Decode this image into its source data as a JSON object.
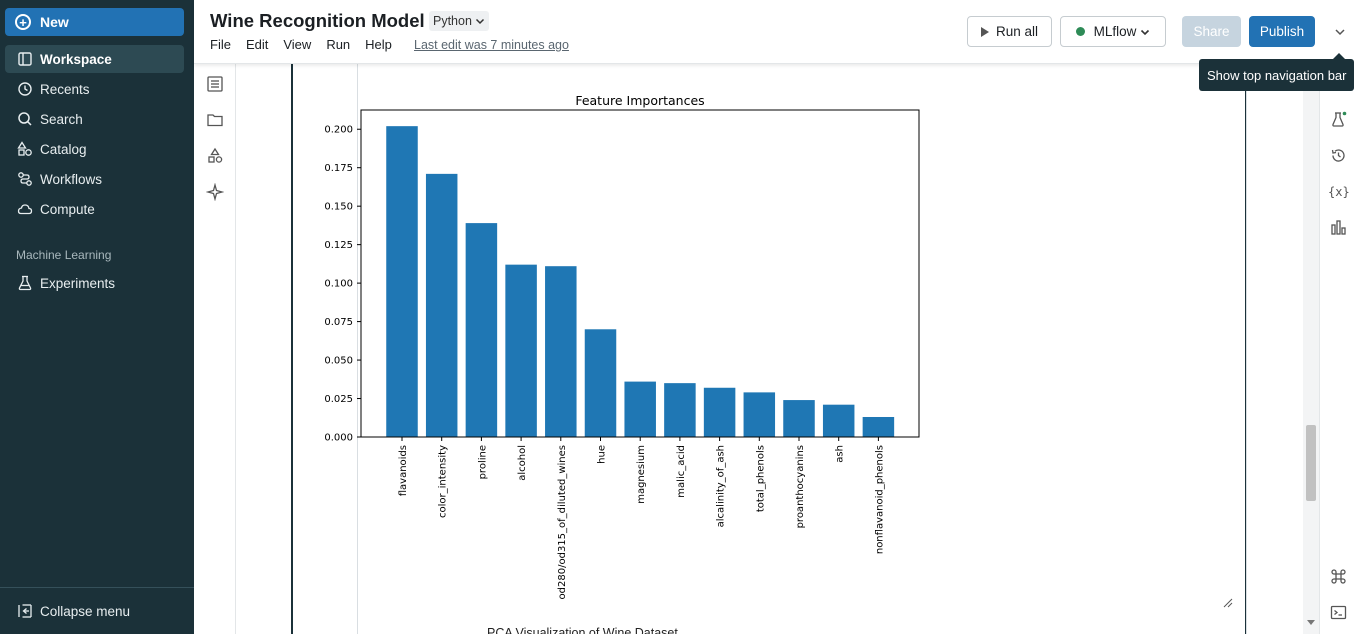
{
  "sidebar": {
    "new_label": "New",
    "items": [
      {
        "label": "Workspace",
        "icon": "workspace-icon",
        "active": true
      },
      {
        "label": "Recents",
        "icon": "clock-icon",
        "active": false
      },
      {
        "label": "Search",
        "icon": "search-icon",
        "active": false
      },
      {
        "label": "Catalog",
        "icon": "catalog-icon",
        "active": false
      },
      {
        "label": "Workflows",
        "icon": "workflows-icon",
        "active": false
      },
      {
        "label": "Compute",
        "icon": "cloud-icon",
        "active": false
      }
    ],
    "section_label": "Machine Learning",
    "ml_items": [
      {
        "label": "Experiments",
        "icon": "flask-icon"
      }
    ],
    "collapse_label": "Collapse menu"
  },
  "header": {
    "title": "Wine Recognition Model",
    "language": "Python",
    "menu": [
      "File",
      "Edit",
      "View",
      "Run",
      "Help"
    ],
    "last_edit": "Last edit was 7 minutes ago",
    "run_all_label": "Run all",
    "compute_label": "MLflow",
    "compute_status_color": "#2e8b57",
    "share_label": "Share",
    "publish_label": "Publish",
    "tooltip": "Show top navigation bar"
  },
  "content": {
    "next_output_title": "PCA Visualization of Wine Dataset"
  },
  "chart_data": {
    "type": "bar",
    "title": "Feature Importances",
    "categories": [
      "flavanoids",
      "color_intensity",
      "proline",
      "alcohol",
      "od280/od315_of_diluted_wines",
      "hue",
      "magnesium",
      "malic_acid",
      "alcalinity_of_ash",
      "total_phenols",
      "proanthocyanins",
      "ash",
      "nonflavanoid_phenols"
    ],
    "values": [
      0.202,
      0.171,
      0.139,
      0.112,
      0.111,
      0.07,
      0.036,
      0.035,
      0.032,
      0.029,
      0.024,
      0.021,
      0.013
    ],
    "ylim": [
      0,
      0.2125
    ],
    "yticks": [
      "0.000",
      "0.025",
      "0.050",
      "0.075",
      "0.100",
      "0.125",
      "0.150",
      "0.175",
      "0.200"
    ],
    "bar_color": "#1f77b4",
    "grid": false
  }
}
